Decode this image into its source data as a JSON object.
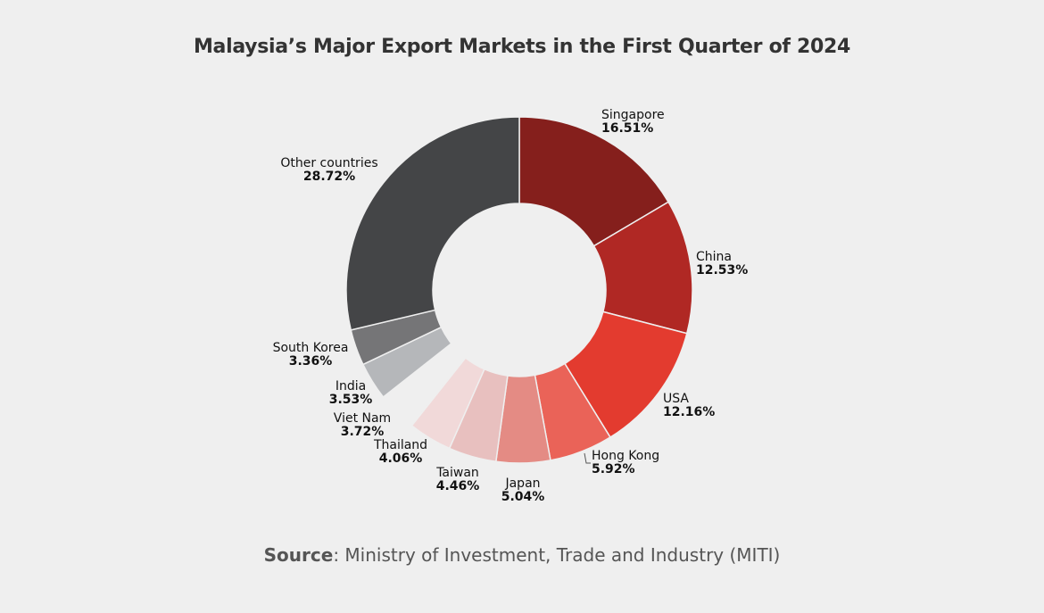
{
  "chart_data": {
    "type": "pie",
    "title": "Malaysia’s Major Export Markets in the First Quarter of 2024",
    "donut": true,
    "slices": [
      {
        "label": "Singapore",
        "value": 16.51,
        "value_label": "16.51%",
        "color": "#851f1c"
      },
      {
        "label": "China",
        "value": 12.53,
        "value_label": "12.53%",
        "color": "#b02824"
      },
      {
        "label": "USA",
        "value": 12.16,
        "value_label": "12.16%",
        "color": "#e33b2f"
      },
      {
        "label": "Hong Kong",
        "value": 5.92,
        "value_label": "5.92%",
        "color": "#ea6358"
      },
      {
        "label": "Japan",
        "value": 5.04,
        "value_label": "5.04%",
        "color": "#e48b84"
      },
      {
        "label": "Taiwan",
        "value": 4.46,
        "value_label": "4.46%",
        "color": "#e8c0bf"
      },
      {
        "label": "Thailand",
        "value": 4.06,
        "value_label": "4.06%",
        "color": "#f1d9d9"
      },
      {
        "label": "Viet Nam",
        "value": 3.72,
        "value_label": "3.72%",
        "color": "#efefef"
      },
      {
        "label": "India",
        "value": 3.53,
        "value_label": "3.53%",
        "color": "#b5b7ba"
      },
      {
        "label": "South Korea",
        "value": 3.36,
        "value_label": "3.36%",
        "color": "#757577"
      },
      {
        "label": "Other countries",
        "value": 28.72,
        "value_label": "28.72%",
        "color": "#444547"
      }
    ]
  },
  "source": {
    "label": "Source",
    "text": ": Ministry of Investment, Trade and Industry (MITI)"
  }
}
